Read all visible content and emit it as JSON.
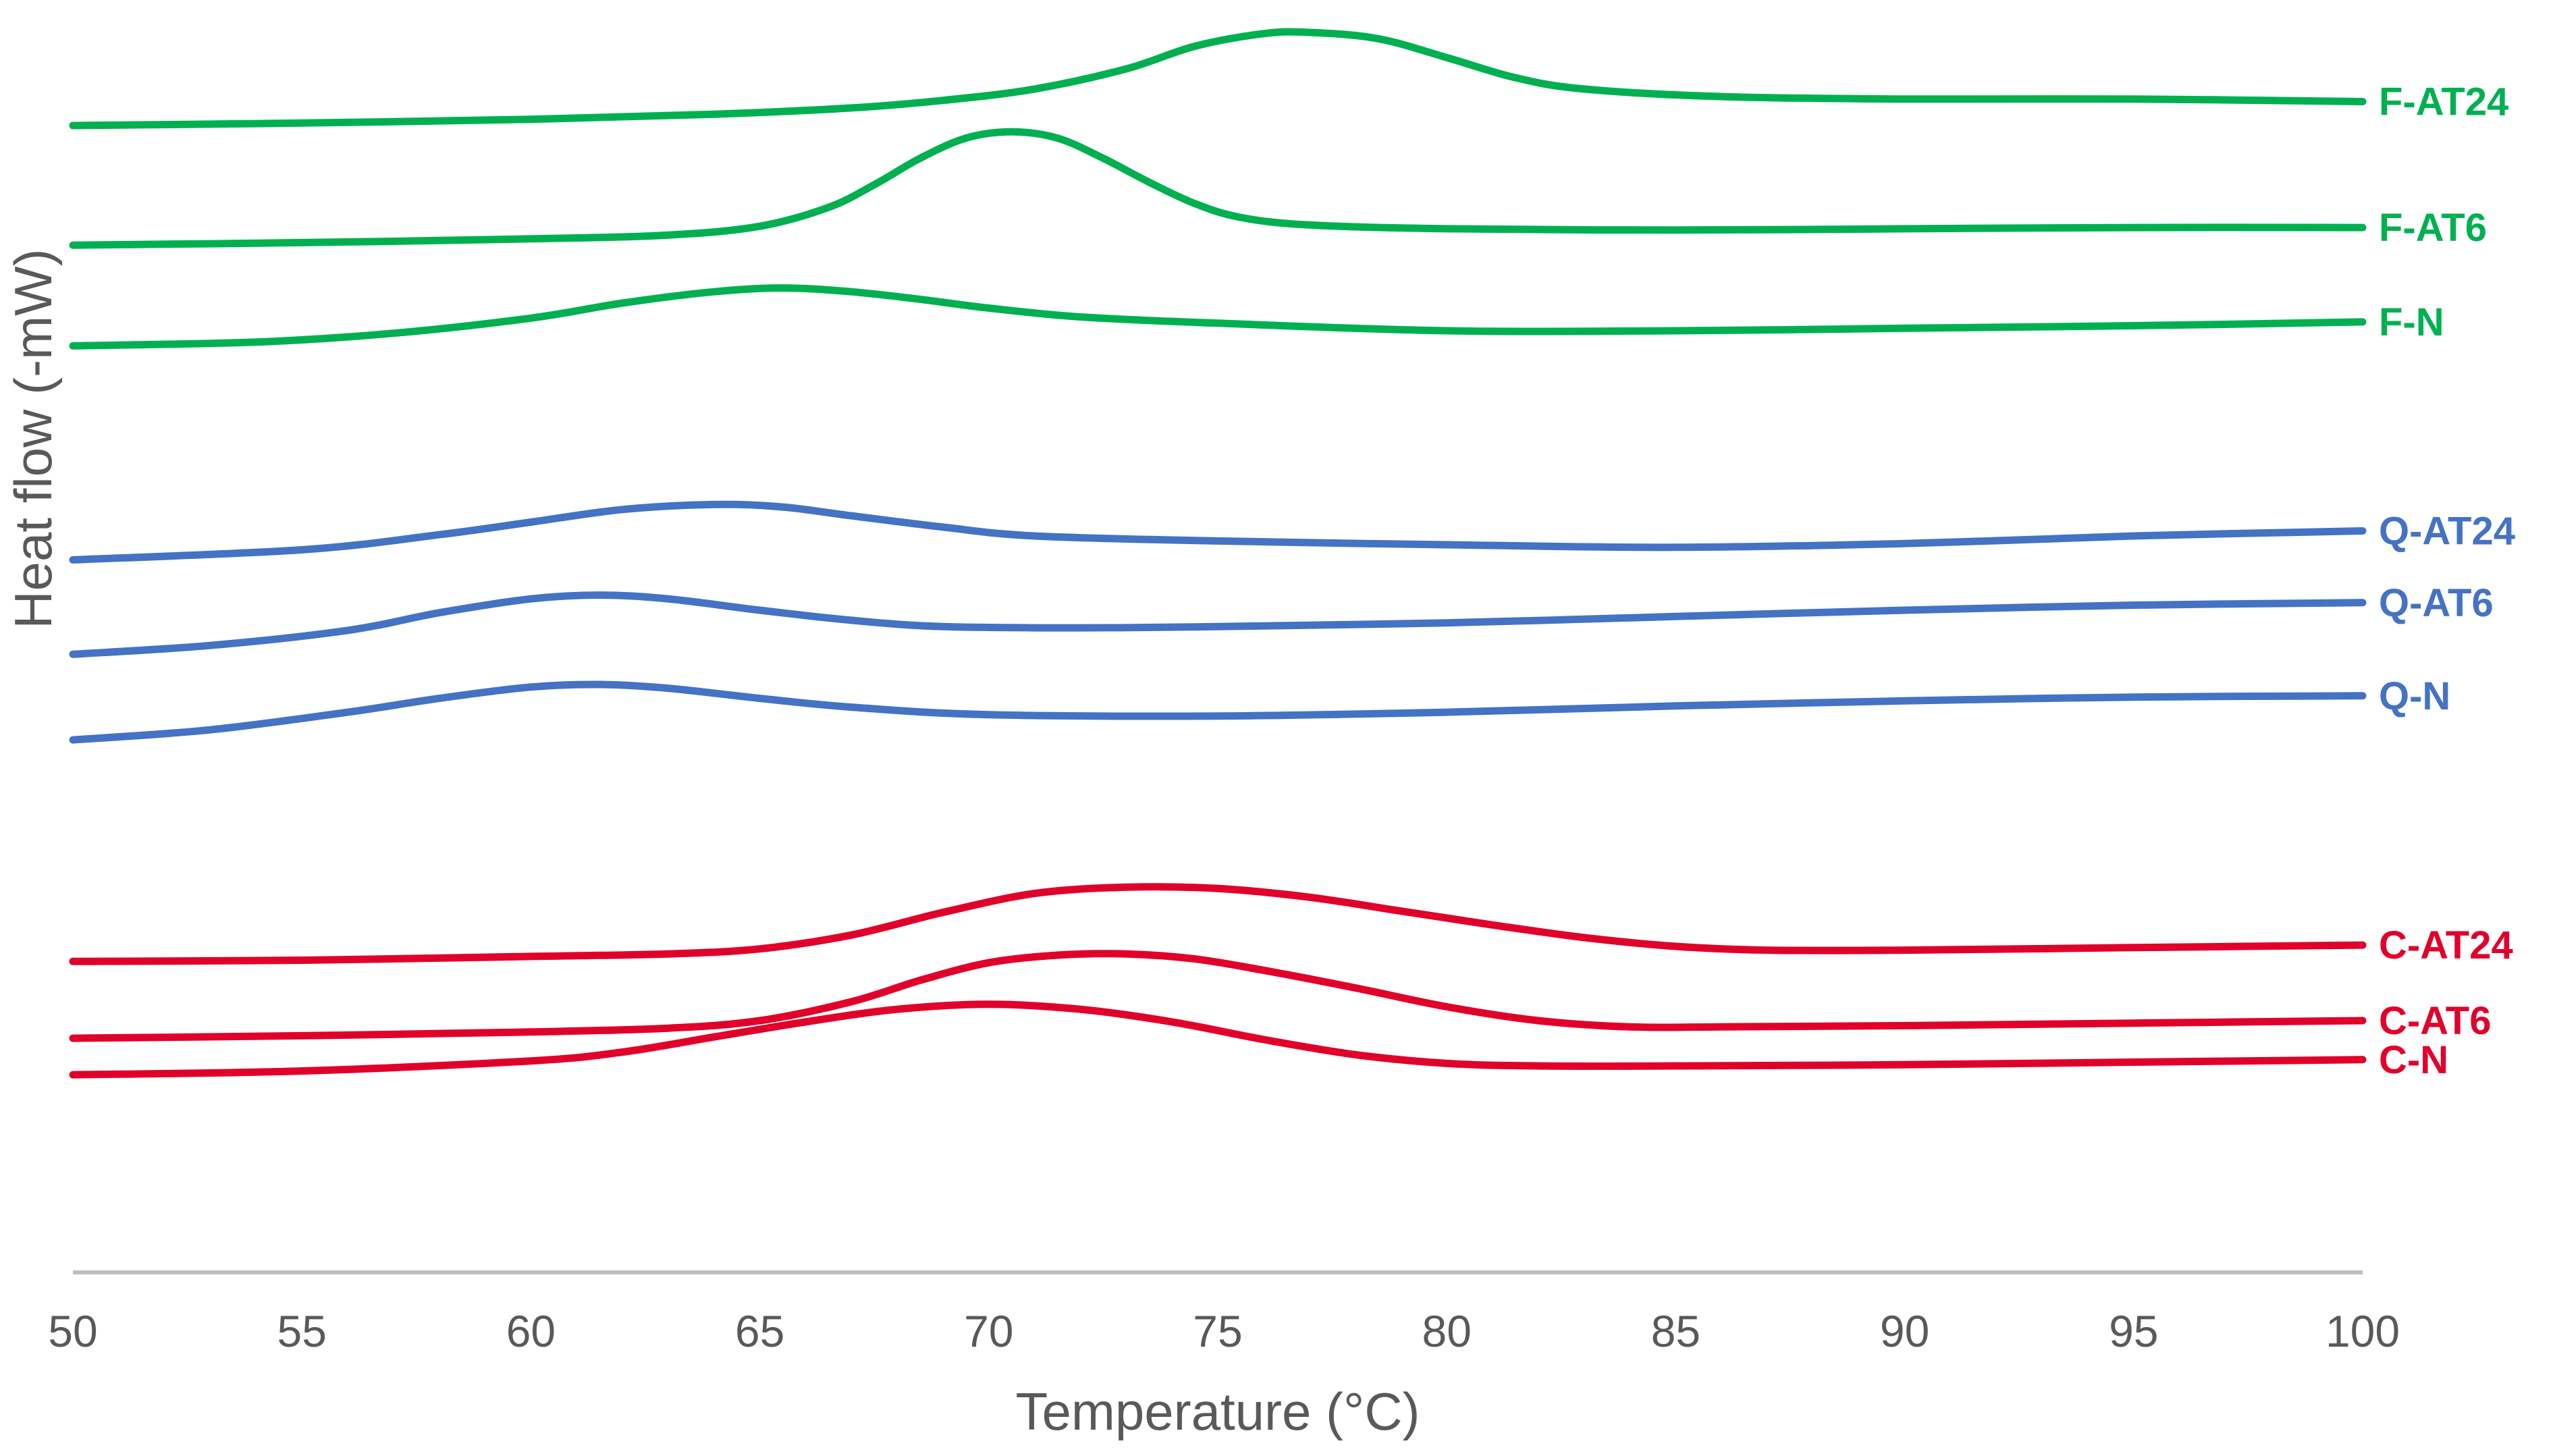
{
  "chart_data": {
    "type": "line",
    "title": "",
    "xlabel": "Temperature (°C)",
    "ylabel": "Heat flow (-mW)",
    "xlim": [
      50,
      100
    ],
    "ylim": [
      0,
      100
    ],
    "xticks": [
      50,
      55,
      60,
      65,
      70,
      75,
      80,
      85,
      90,
      95,
      100
    ],
    "xtick_labels": [
      "50",
      "55",
      "60",
      "65",
      "70",
      "75",
      "80",
      "85",
      "90",
      "95",
      "100"
    ],
    "y_axis_visible": false,
    "grid": false,
    "legend": "labels at line ends (right)",
    "series": [
      {
        "name": "F-AT24",
        "color": "#00B050",
        "x": [
          50,
          55,
          60,
          64,
          67,
          69,
          71,
          73,
          74.5,
          76,
          77,
          78.5,
          80,
          81.5,
          83,
          86,
          90,
          95,
          100
        ],
        "y": [
          91.1,
          91.3,
          91.6,
          92.0,
          92.5,
          93.1,
          94.0,
          95.6,
          97.4,
          98.4,
          98.5,
          98.0,
          96.5,
          94.9,
          94.0,
          93.4,
          93.2,
          93.2,
          93.0
        ]
      },
      {
        "name": "F-AT6",
        "color": "#00B050",
        "x": [
          50,
          55,
          60,
          63,
          65,
          66.5,
          67.5,
          68.5,
          69.5,
          70.5,
          71.5,
          72.5,
          73.5,
          74.5,
          75.5,
          77,
          80,
          85,
          90,
          95,
          100
        ],
        "y": [
          81.6,
          81.8,
          82.1,
          82.4,
          83.1,
          84.6,
          86.4,
          88.5,
          90.1,
          90.6,
          90.1,
          88.5,
          86.6,
          84.9,
          83.8,
          83.2,
          82.9,
          82.8,
          82.9,
          83.0,
          83.0
        ]
      },
      {
        "name": "F-N",
        "color": "#00B050",
        "x": [
          50,
          54,
          57,
          60,
          62,
          64,
          65.5,
          67,
          68.5,
          70,
          72,
          75,
          80,
          85,
          90,
          95,
          100
        ],
        "y": [
          73.6,
          73.9,
          74.6,
          75.8,
          77.0,
          77.9,
          78.2,
          77.9,
          77.3,
          76.6,
          75.9,
          75.4,
          74.8,
          74.8,
          75.0,
          75.2,
          75.5
        ]
      },
      {
        "name": "Q-AT24",
        "color": "#4472C4",
        "x": [
          50,
          55,
          58,
          60,
          62,
          64,
          65.5,
          67,
          69,
          71,
          75,
          80,
          85,
          90,
          95,
          100
        ],
        "y": [
          56.6,
          57.4,
          58.6,
          59.6,
          60.6,
          61.0,
          60.8,
          60.1,
          59.2,
          58.5,
          58.1,
          57.8,
          57.6,
          57.9,
          58.5,
          58.9
        ]
      },
      {
        "name": "Q-AT6",
        "color": "#4472C4",
        "x": [
          50,
          53,
          56,
          58,
          60,
          61.5,
          63,
          65,
          67,
          69,
          72,
          75,
          80,
          85,
          90,
          95,
          100
        ],
        "y": [
          49.1,
          49.8,
          51.0,
          52.4,
          53.5,
          53.8,
          53.5,
          52.6,
          51.8,
          51.3,
          51.2,
          51.3,
          51.6,
          52.1,
          52.6,
          53.0,
          53.2
        ]
      },
      {
        "name": "Q-N",
        "color": "#4472C4",
        "x": [
          50,
          53,
          56,
          58,
          60,
          61.5,
          63,
          65,
          67,
          70,
          75,
          80,
          85,
          90,
          95,
          100
        ],
        "y": [
          42.3,
          43.1,
          44.5,
          45.6,
          46.5,
          46.7,
          46.4,
          45.6,
          44.9,
          44.3,
          44.2,
          44.5,
          45.0,
          45.4,
          45.7,
          45.8
        ]
      },
      {
        "name": "C-AT24",
        "color": "#E0002A",
        "x": [
          50,
          55,
          60,
          63,
          65,
          67,
          69,
          71,
          73,
          75,
          77,
          79,
          81,
          83,
          85,
          87,
          90,
          95,
          100
        ],
        "y": [
          24.7,
          24.8,
          25.1,
          25.3,
          25.7,
          26.8,
          28.6,
          30.1,
          30.6,
          30.5,
          29.8,
          28.7,
          27.6,
          26.6,
          25.9,
          25.6,
          25.6,
          25.8,
          26.0
        ]
      },
      {
        "name": "C-AT6",
        "color": "#E0002A",
        "x": [
          50,
          55,
          60,
          63,
          65,
          67,
          68.5,
          70,
          71.5,
          73,
          74.5,
          76,
          78,
          80,
          82,
          84,
          86,
          90,
          95,
          100
        ],
        "y": [
          18.6,
          18.8,
          19.1,
          19.4,
          20.0,
          21.5,
          23.2,
          24.6,
          25.2,
          25.3,
          24.9,
          24.0,
          22.6,
          21.1,
          20.0,
          19.5,
          19.5,
          19.6,
          19.8,
          20.0
        ]
      },
      {
        "name": "C-N",
        "color": "#E0002A",
        "x": [
          50,
          55,
          60,
          62,
          64,
          66,
          68,
          70,
          72,
          74,
          76,
          78,
          80,
          82,
          85,
          90,
          95,
          100
        ],
        "y": [
          15.7,
          16.0,
          16.8,
          17.5,
          18.7,
          19.9,
          20.9,
          21.3,
          20.9,
          19.9,
          18.5,
          17.3,
          16.6,
          16.4,
          16.4,
          16.5,
          16.7,
          16.9
        ]
      }
    ]
  }
}
